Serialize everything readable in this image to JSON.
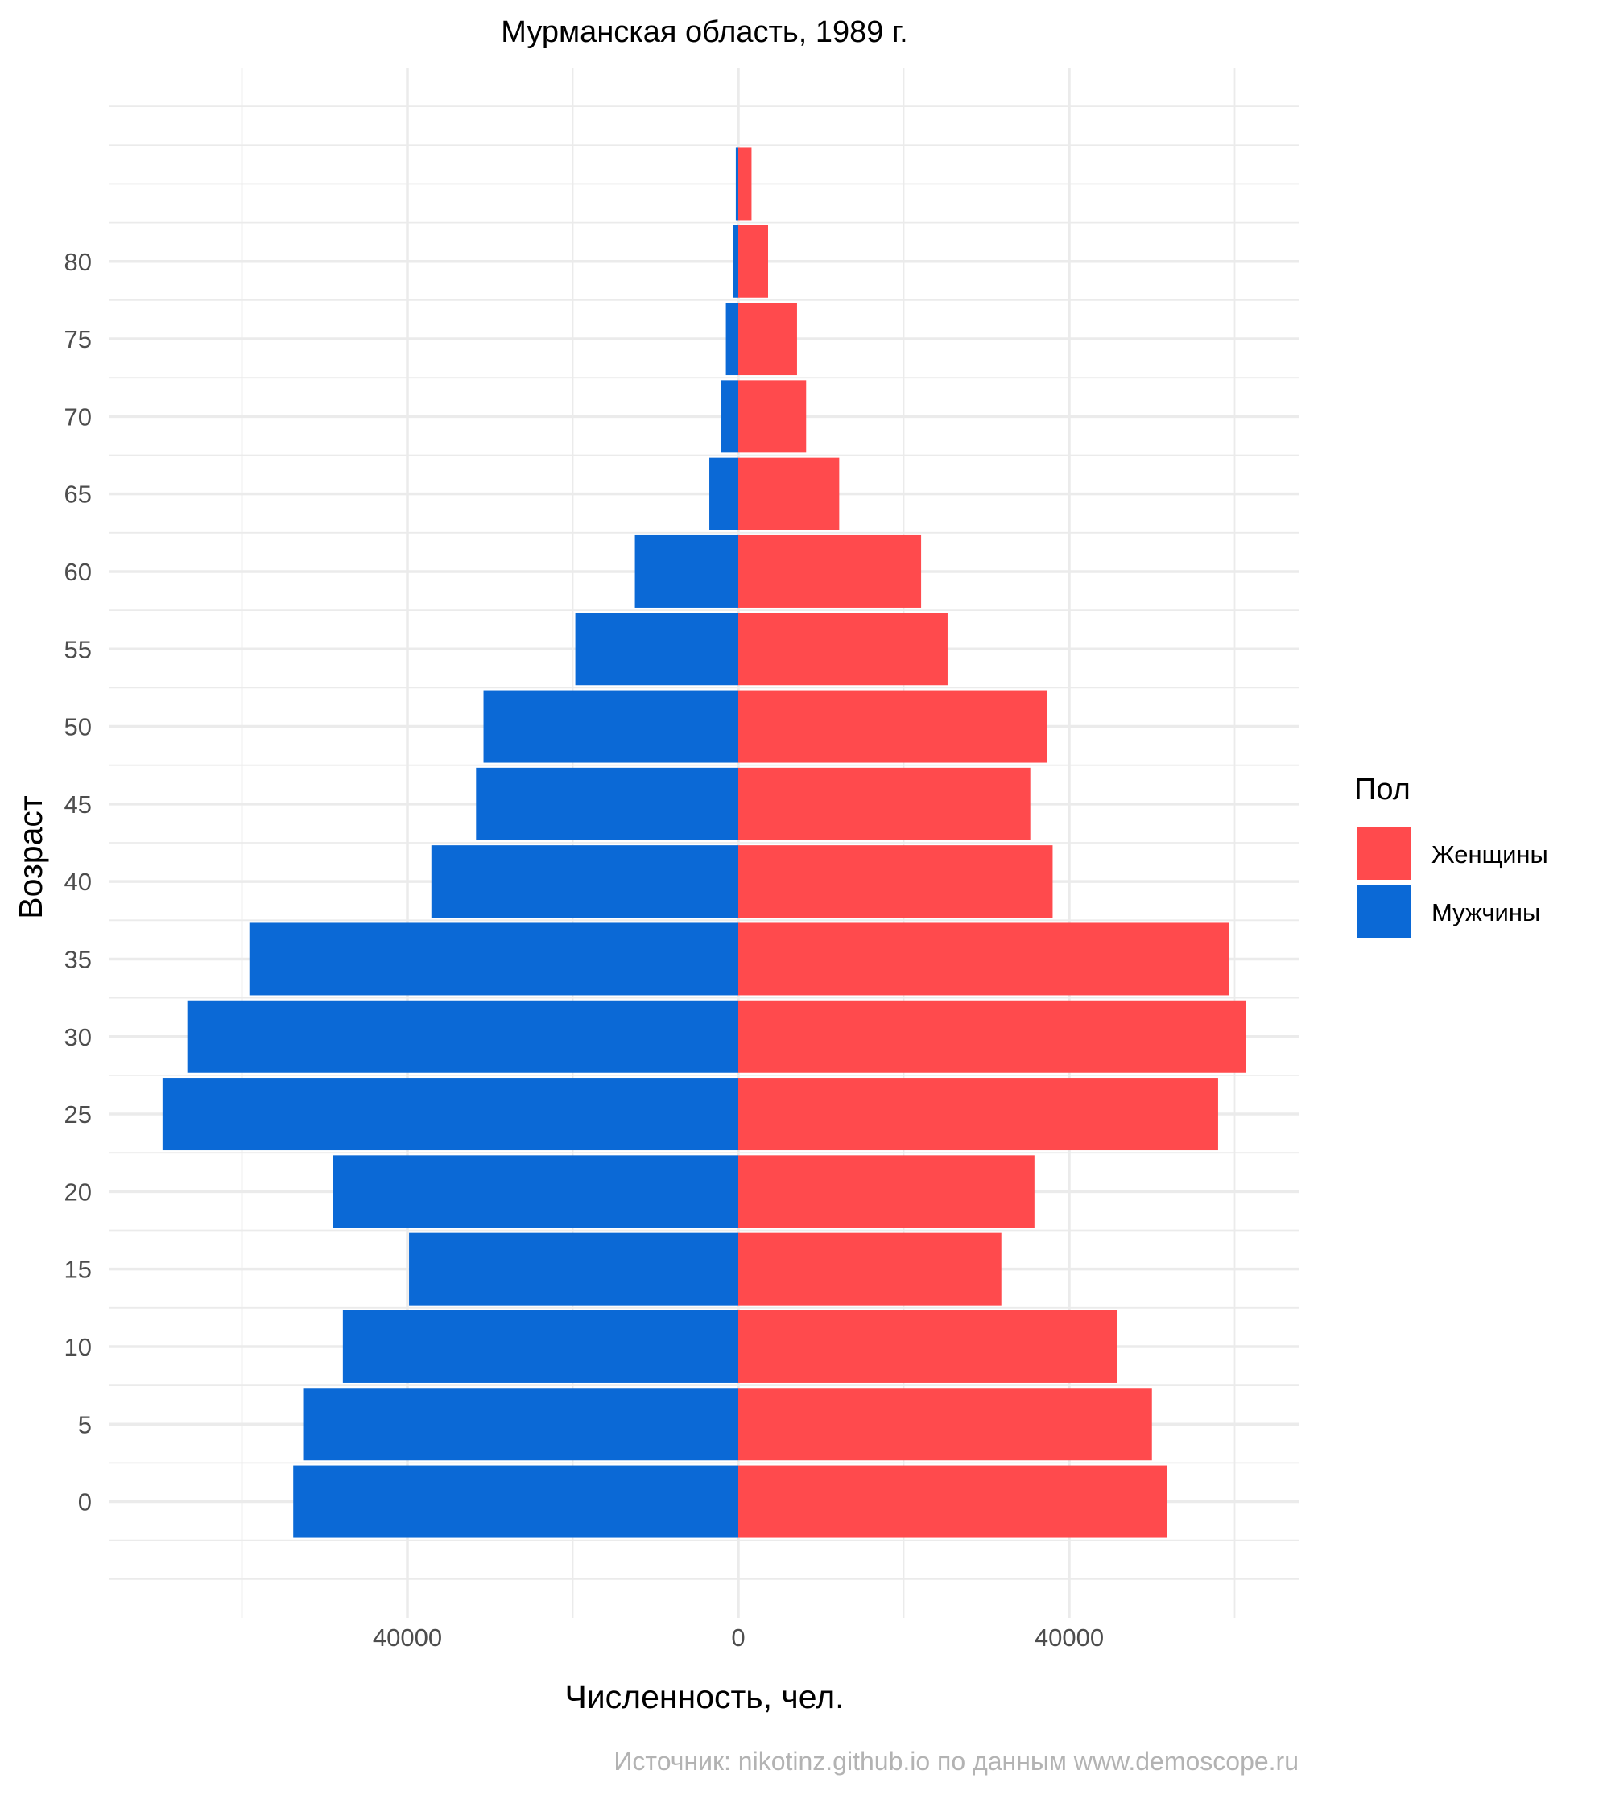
{
  "chart_data": {
    "type": "bar",
    "orientation": "horizontal",
    "title": "Мурманская область, 1989 г.",
    "xlabel": "Численность, чел.",
    "ylabel": "Возраст",
    "caption": "Источник: nikotinz.github.io по данным www.demoscope.ru",
    "legend_title": "Пол",
    "legend_position": "right",
    "grid": true,
    "xlim": [
      -72000,
      68000
    ],
    "x_ticks": [
      -40000,
      0,
      40000
    ],
    "x_tick_labels": [
      "40000",
      "0",
      "40000"
    ],
    "y_ticks": [
      0,
      5,
      10,
      15,
      20,
      25,
      30,
      35,
      40,
      45,
      50,
      55,
      60,
      65,
      70,
      75,
      80
    ],
    "categories": [
      0,
      5,
      10,
      15,
      20,
      25,
      30,
      35,
      40,
      45,
      50,
      55,
      60,
      65,
      70,
      75,
      80,
      85
    ],
    "series": [
      {
        "name": "Женщины",
        "color": "#ff4a4d",
        "values": [
          51800,
          50000,
          45800,
          31800,
          35800,
          58000,
          61400,
          59300,
          38000,
          35300,
          37300,
          25300,
          22100,
          12200,
          8200,
          7100,
          3600,
          1600
        ]
      },
      {
        "name": "Мужчины",
        "color": "#0b69d6",
        "values": [
          53800,
          52600,
          47800,
          39800,
          49000,
          69600,
          66600,
          59100,
          37100,
          31700,
          30800,
          19700,
          12500,
          3500,
          2100,
          1500,
          600,
          300
        ]
      }
    ]
  }
}
